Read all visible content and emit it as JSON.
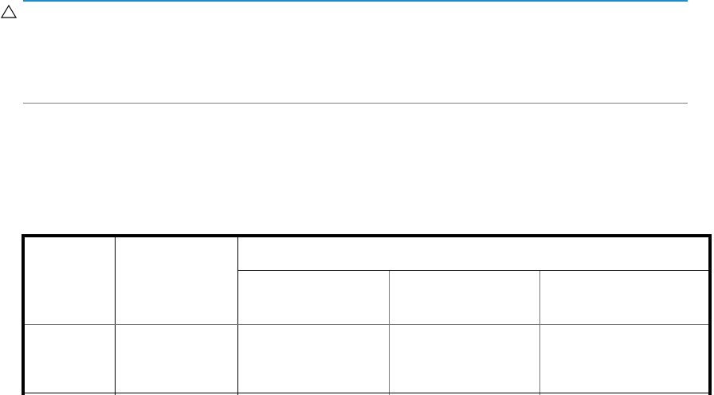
{
  "colors": {
    "caution_rule": "#1a8fd0",
    "bottom_rule": "#808080",
    "table_border": "#000000"
  },
  "caution": {
    "icon": "warning-triangle-icon"
  },
  "table": {
    "header_rows": 2,
    "columns": 5,
    "body_rows": 1
  }
}
